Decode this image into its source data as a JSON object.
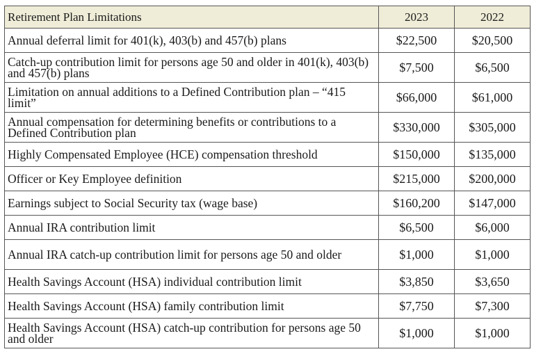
{
  "table": {
    "headers": [
      "Retirement Plan Limitations",
      "2023",
      "2022"
    ],
    "header_bg": "#efedd8",
    "rows": [
      {
        "label": "Annual deferral limit for 401(k), 403(b) and 457(b) plans",
        "v2023": "$22,500",
        "v2022": "$20,500"
      },
      {
        "label": "Catch-up contribution limit for persons age 50 and older in 401(k), 403(b) and 457(b) plans",
        "v2023": "$7,500",
        "v2022": "$6,500"
      },
      {
        "label": "Limitation on annual additions to a Defined Contribution plan – “415 limit”",
        "v2023": "$66,000",
        "v2022": "$61,000"
      },
      {
        "label": "Annual compensation for determining benefits or contributions to a Defined Contribution plan",
        "v2023": "$330,000",
        "v2022": "$305,000"
      },
      {
        "label": "Highly Compensated Employee (HCE) compensation threshold",
        "v2023": "$150,000",
        "v2022": "$135,000"
      },
      {
        "label": "Officer or Key Employee definition",
        "v2023": "$215,000",
        "v2022": "$200,000"
      },
      {
        "label": "Earnings subject to Social Security tax (wage base)",
        "v2023": "$160,200",
        "v2022": "$147,000"
      },
      {
        "label": "Annual IRA contribution limit",
        "v2023": "$6,500",
        "v2022": "$6,000"
      },
      {
        "label": "Annual IRA catch-up contribution limit for persons age 50 and older",
        "v2023": "$1,000",
        "v2022": "$1,000"
      },
      {
        "label": "Health Savings Account (HSA) individual contribution limit",
        "v2023": "$3,850",
        "v2022": "$3,650"
      },
      {
        "label": "Health Savings Account (HSA) family contribution limit",
        "v2023": "$7,750",
        "v2022": "$7,300"
      },
      {
        "label": "Health Savings Account (HSA) catch-up contribution for persons age 50 and older",
        "v2023": "$1,000",
        "v2022": "$1,000"
      }
    ]
  }
}
